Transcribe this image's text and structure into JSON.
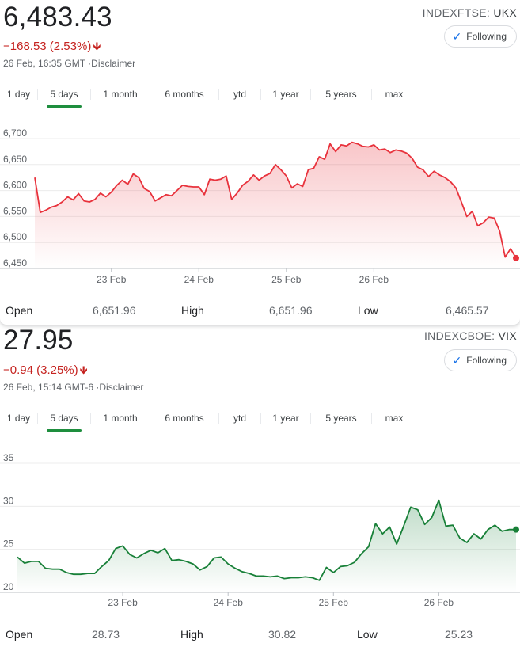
{
  "panels": [
    {
      "price": "6,483.43",
      "change": "−168.53 (2.53%)",
      "change_arrow": "🡻",
      "timestamp": "26 Feb, 16:35 GMT ·Disclaimer",
      "exchange": "INDEXFTSE:",
      "symbol": "UKX",
      "follow_label": "Following",
      "tabs": [
        "1 day",
        "5 days",
        "1 month",
        "6 months",
        "ytd",
        "1 year",
        "5 years",
        "max"
      ],
      "active_tab": 1,
      "stats": {
        "open_label": "Open",
        "open": "6,651.96",
        "high_label": "High",
        "high": "6,651.96",
        "low_label": "Low",
        "low": "6,465.57"
      },
      "chart_data": {
        "type": "area",
        "ylim": [
          6450,
          6700
        ],
        "y_ticks": [
          "6,700",
          "6,650",
          "6,600",
          "6,550",
          "6,500",
          "6,450"
        ],
        "y_tick_values": [
          6700,
          6650,
          6600,
          6550,
          6500,
          6450
        ],
        "x_tick_labels": [
          "23 Feb",
          "24 Feb",
          "25 Feb",
          "26 Feb"
        ],
        "x_tick_index": [
          14,
          30,
          46,
          62
        ],
        "color": "#e8323c",
        "series": [
          {
            "values": [
              6625,
              6558,
              6562,
              6568,
              6571,
              6578,
              6588,
              6582,
              6594,
              6580,
              6578,
              6583,
              6595,
              6588,
              6597,
              6610,
              6620,
              6612,
              6632,
              6625,
              6604,
              6598,
              6580,
              6586,
              6592,
              6590,
              6600,
              6610,
              6608,
              6607,
              6607,
              6592,
              6622,
              6620,
              6622,
              6628,
              6583,
              6595,
              6610,
              6618,
              6630,
              6620,
              6628,
              6633,
              6650,
              6640,
              6628,
              6605,
              6613,
              6608,
              6640,
              6643,
              6665,
              6660,
              6690,
              6675,
              6688,
              6686,
              6693,
              6690,
              6685,
              6684,
              6688,
              6678,
              6680,
              6673,
              6678,
              6676,
              6672,
              6662,
              6645,
              6640,
              6627,
              6637,
              6630,
              6625,
              6617,
              6605,
              6578,
              6550,
              6560,
              6532,
              6538,
              6549,
              6547,
              6522,
              6472,
              6488,
              6470
            ]
          }
        ]
      }
    },
    {
      "price": "27.95",
      "change": "−0.94 (3.25%)",
      "change_arrow": "🡻",
      "timestamp": "26 Feb, 15:14 GMT-6 ·Disclaimer",
      "exchange": "INDEXCBOE:",
      "symbol": "VIX",
      "follow_label": "Following",
      "tabs": [
        "1 day",
        "5 days",
        "1 month",
        "6 months",
        "ytd",
        "1 year",
        "5 years",
        "max"
      ],
      "active_tab": 1,
      "stats": {
        "open_label": "Open",
        "open": "28.73",
        "high_label": "High",
        "high": "30.82",
        "low_label": "Low",
        "low": "25.23"
      },
      "chart_data": {
        "type": "area",
        "ylim": [
          20,
          35
        ],
        "y_ticks": [
          "35",
          "30",
          "25",
          "20"
        ],
        "y_tick_values": [
          35,
          30,
          25,
          20
        ],
        "x_tick_labels": [
          "23 Feb",
          "24 Feb",
          "25 Feb",
          "26 Feb"
        ],
        "x_tick_index": [
          15,
          30,
          45,
          60
        ],
        "color": "#188038",
        "series": [
          {
            "values": [
              24.1,
              23.4,
              23.6,
              23.6,
              22.8,
              22.7,
              22.7,
              22.3,
              22.1,
              22.1,
              22.2,
              22.2,
              23.0,
              23.7,
              25.1,
              25.4,
              24.4,
              24.0,
              24.5,
              24.9,
              24.6,
              25.1,
              23.7,
              23.8,
              23.6,
              23.3,
              22.6,
              23.0,
              24.0,
              24.1,
              23.3,
              22.8,
              22.4,
              22.2,
              21.9,
              21.9,
              21.8,
              21.9,
              21.6,
              21.7,
              21.7,
              21.8,
              21.7,
              21.4,
              22.9,
              22.3,
              23.0,
              23.1,
              23.5,
              24.5,
              25.3,
              28.0,
              26.8,
              27.6,
              25.6,
              27.7,
              29.9,
              29.6,
              27.9,
              28.7,
              30.7,
              27.7,
              27.8,
              26.3,
              25.8,
              26.8,
              26.2,
              27.3,
              27.8,
              27.1,
              27.3,
              27.3
            ]
          }
        ]
      }
    }
  ]
}
